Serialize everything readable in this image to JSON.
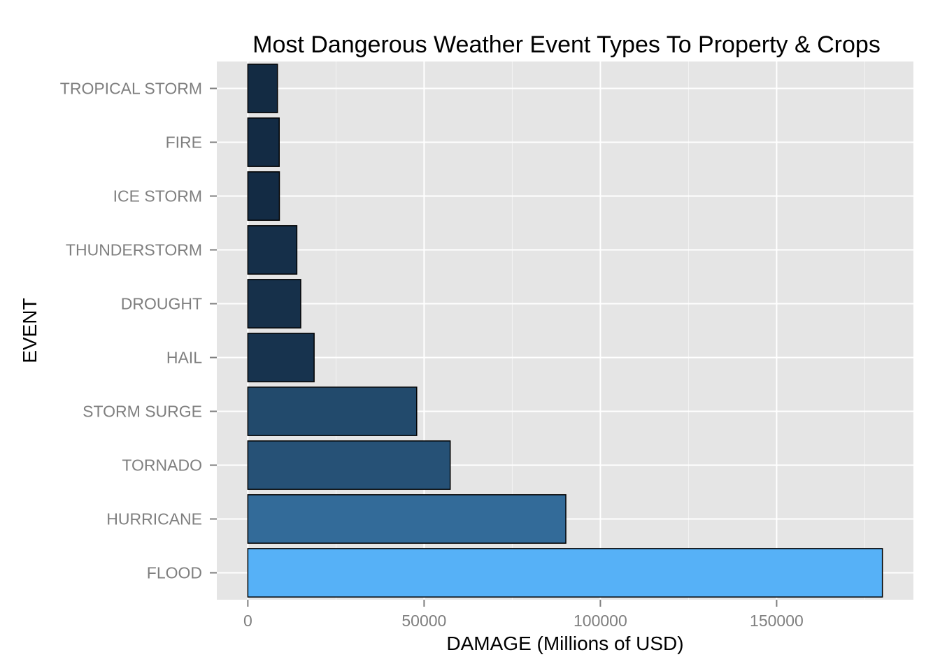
{
  "chart_data": {
    "type": "bar",
    "orientation": "horizontal",
    "title": "Most Dangerous Weather Event Types To Property & Crops",
    "xlabel": "DAMAGE (Millions of USD)",
    "ylabel": "EVENT",
    "categories": [
      "TROPICAL STORM",
      "FIRE",
      "ICE STORM",
      "THUNDERSTORM",
      "DROUGHT",
      "HAIL",
      "STORM SURGE",
      "TORNADO",
      "HURRICANE",
      "FLOOD"
    ],
    "values": [
      8400,
      8900,
      8950,
      13900,
      15000,
      18800,
      47900,
      57400,
      90200,
      180000
    ],
    "xlim": [
      -8800,
      188800
    ],
    "x_ticks": [
      0,
      50000,
      100000,
      150000
    ],
    "x_tick_labels": [
      "0",
      "50000",
      "100000",
      "150000"
    ],
    "grid": true,
    "legend": "none",
    "colors": {
      "panel_background": "#e5e5e5",
      "grid_line": "#ffffff",
      "bar_outline": "#000000",
      "fill_low": "#132b43",
      "fill_high": "#56b1f7",
      "tick_label": "#7f7f7f"
    }
  }
}
